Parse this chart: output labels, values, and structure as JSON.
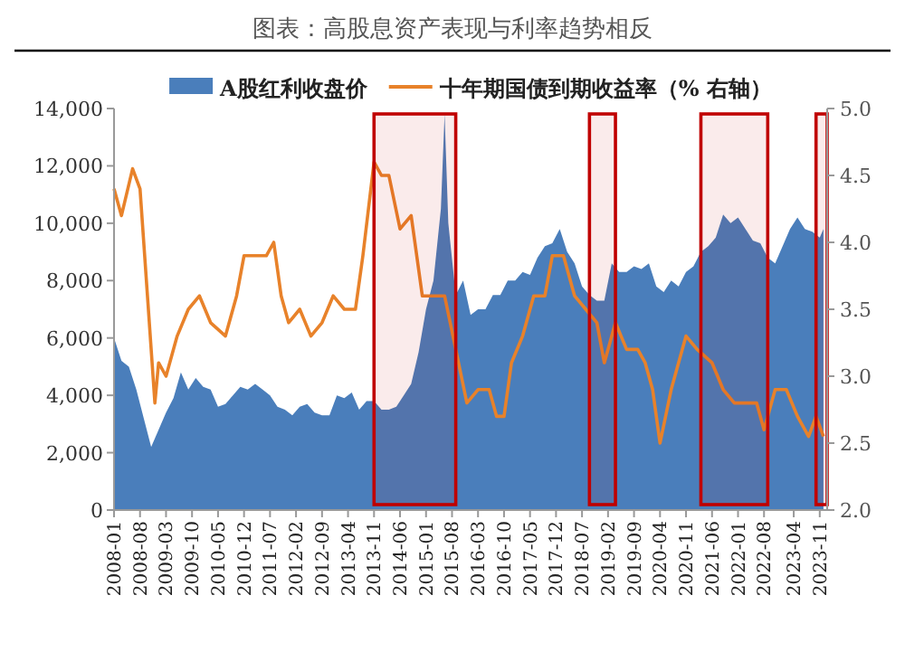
{
  "chart_data": {
    "type": "area",
    "title": "图表：高股息资产表现与利率趋势相反",
    "legend": "top",
    "xlim": [
      "2008-01",
      "2024-01"
    ],
    "xticks": [
      "2008-01",
      "2008-08",
      "2009-03",
      "2009-10",
      "2010-05",
      "2010-12",
      "2011-07",
      "2012-02",
      "2012-09",
      "2013-04",
      "2013-11",
      "2014-06",
      "2015-01",
      "2015-08",
      "2016-03",
      "2016-10",
      "2017-05",
      "2017-12",
      "2018-07",
      "2019-02",
      "2019-09",
      "2020-04",
      "2020-11",
      "2021-06",
      "2022-01",
      "2022-08",
      "2023-04",
      "2023-11"
    ],
    "ylim": [
      0,
      14000
    ],
    "yticks": [
      {
        "value": 0,
        "label": "0"
      },
      {
        "value": 2000,
        "label": "2,000"
      },
      {
        "value": 4000,
        "label": "4,000"
      },
      {
        "value": 6000,
        "label": "6,000"
      },
      {
        "value": 8000,
        "label": "8,000"
      },
      {
        "value": 10000,
        "label": "10,000"
      },
      {
        "value": 12000,
        "label": "12,000"
      },
      {
        "value": 14000,
        "label": "14,000"
      }
    ],
    "y2lim": [
      2,
      5
    ],
    "y2ticks": [
      {
        "value": 2,
        "label": "2.0"
      },
      {
        "value": 2.5,
        "label": "2.5"
      },
      {
        "value": 3,
        "label": "3.0"
      },
      {
        "value": 3.5,
        "label": "3.5"
      },
      {
        "value": 4,
        "label": "4.0"
      },
      {
        "value": 4.5,
        "label": "4.5"
      },
      {
        "value": 5,
        "label": "5.0"
      }
    ],
    "bands": [
      {
        "axis": "x",
        "from": "2013-11",
        "to": "2015-09",
        "color": "#c00000"
      },
      {
        "axis": "x",
        "from": "2018-09",
        "to": "2019-04",
        "color": "#c00000"
      },
      {
        "axis": "x",
        "from": "2021-03",
        "to": "2022-09",
        "color": "#c00000"
      },
      {
        "axis": "x",
        "from": "2023-10",
        "to": "2024-01",
        "color": "#c00000"
      }
    ],
    "series": [
      {
        "name": "A股红利收盘价",
        "color": "#4a7ebb",
        "x": [
          "2008-01",
          "2008-03",
          "2008-05",
          "2008-07",
          "2008-09",
          "2008-11",
          "2009-01",
          "2009-03",
          "2009-05",
          "2009-07",
          "2009-09",
          "2009-11",
          "2010-01",
          "2010-03",
          "2010-05",
          "2010-07",
          "2010-09",
          "2010-11",
          "2011-01",
          "2011-03",
          "2011-05",
          "2011-07",
          "2011-09",
          "2011-11",
          "2012-01",
          "2012-03",
          "2012-05",
          "2012-07",
          "2012-09",
          "2012-11",
          "2013-01",
          "2013-03",
          "2013-05",
          "2013-07",
          "2013-09",
          "2013-11",
          "2014-01",
          "2014-03",
          "2014-05",
          "2014-07",
          "2014-09",
          "2014-11",
          "2015-01",
          "2015-03",
          "2015-05",
          "2015-06",
          "2015-07",
          "2015-09",
          "2015-11",
          "2016-01",
          "2016-03",
          "2016-05",
          "2016-07",
          "2016-09",
          "2016-11",
          "2017-01",
          "2017-03",
          "2017-05",
          "2017-07",
          "2017-09",
          "2017-11",
          "2018-01",
          "2018-03",
          "2018-05",
          "2018-07",
          "2018-09",
          "2018-11",
          "2019-01",
          "2019-03",
          "2019-05",
          "2019-07",
          "2019-09",
          "2019-11",
          "2020-01",
          "2020-03",
          "2020-05",
          "2020-07",
          "2020-09",
          "2020-11",
          "2021-01",
          "2021-03",
          "2021-05",
          "2021-07",
          "2021-09",
          "2021-11",
          "2022-01",
          "2022-03",
          "2022-05",
          "2022-07",
          "2022-09",
          "2022-11",
          "2023-01",
          "2023-03",
          "2023-05",
          "2023-07",
          "2023-09",
          "2023-11",
          "2023-12"
        ],
        "values": [
          6000,
          5200,
          5000,
          4200,
          3200,
          2200,
          2800,
          3400,
          3900,
          4800,
          4200,
          4600,
          4300,
          4200,
          3600,
          3700,
          4000,
          4300,
          4200,
          4400,
          4200,
          4000,
          3600,
          3500,
          3300,
          3600,
          3700,
          3400,
          3300,
          3300,
          4000,
          3900,
          4100,
          3500,
          3800,
          3800,
          3500,
          3500,
          3600,
          4000,
          4400,
          5500,
          7000,
          8000,
          10500,
          13800,
          10000,
          7500,
          8000,
          6800,
          7000,
          7000,
          7500,
          7500,
          8000,
          8000,
          8300,
          8200,
          8800,
          9200,
          9300,
          9800,
          9000,
          8600,
          7800,
          7500,
          7300,
          7300,
          8600,
          8300,
          8300,
          8500,
          8400,
          8600,
          7800,
          7600,
          8000,
          7800,
          8300,
          8500,
          9000,
          9200,
          9500,
          10300,
          10000,
          10200,
          9800,
          9400,
          9300,
          8800,
          8600,
          9200,
          9800,
          10200,
          9800,
          9700,
          9500,
          9800
        ]
      },
      {
        "type": "line",
        "name": "十年期国债到期收益率（% 右轴）",
        "color": "#e8822a",
        "axis": "y2",
        "x": [
          "2008-01",
          "2008-03",
          "2008-06",
          "2008-08",
          "2008-10",
          "2008-12",
          "2009-01",
          "2009-03",
          "2009-06",
          "2009-09",
          "2009-12",
          "2010-03",
          "2010-07",
          "2010-10",
          "2010-12",
          "2011-03",
          "2011-06",
          "2011-08",
          "2011-10",
          "2011-12",
          "2012-03",
          "2012-06",
          "2012-09",
          "2012-12",
          "2013-03",
          "2013-06",
          "2013-08",
          "2013-11",
          "2014-01",
          "2014-03",
          "2014-06",
          "2014-09",
          "2014-12",
          "2015-03",
          "2015-06",
          "2015-09",
          "2015-12",
          "2016-03",
          "2016-06",
          "2016-08",
          "2016-10",
          "2016-12",
          "2017-03",
          "2017-06",
          "2017-09",
          "2017-11",
          "2018-02",
          "2018-05",
          "2018-08",
          "2018-11",
          "2019-01",
          "2019-04",
          "2019-07",
          "2019-10",
          "2019-12",
          "2020-02",
          "2020-04",
          "2020-07",
          "2020-11",
          "2021-02",
          "2021-06",
          "2021-09",
          "2021-12",
          "2022-03",
          "2022-06",
          "2022-08",
          "2022-11",
          "2023-02",
          "2023-05",
          "2023-08",
          "2023-10",
          "2023-12"
        ],
        "values": [
          4.4,
          4.2,
          4.55,
          4.4,
          3.6,
          2.8,
          3.1,
          3.0,
          3.3,
          3.5,
          3.6,
          3.4,
          3.3,
          3.6,
          3.9,
          3.9,
          3.9,
          4.0,
          3.6,
          3.4,
          3.5,
          3.3,
          3.4,
          3.6,
          3.5,
          3.5,
          3.9,
          4.6,
          4.5,
          4.5,
          4.1,
          4.2,
          3.6,
          3.6,
          3.6,
          3.2,
          2.8,
          2.9,
          2.9,
          2.7,
          2.7,
          3.1,
          3.3,
          3.6,
          3.6,
          3.9,
          3.9,
          3.6,
          3.5,
          3.4,
          3.1,
          3.4,
          3.2,
          3.2,
          3.1,
          2.9,
          2.5,
          2.9,
          3.3,
          3.2,
          3.1,
          2.9,
          2.8,
          2.8,
          2.8,
          2.6,
          2.9,
          2.9,
          2.7,
          2.55,
          2.7,
          2.55
        ]
      }
    ]
  }
}
